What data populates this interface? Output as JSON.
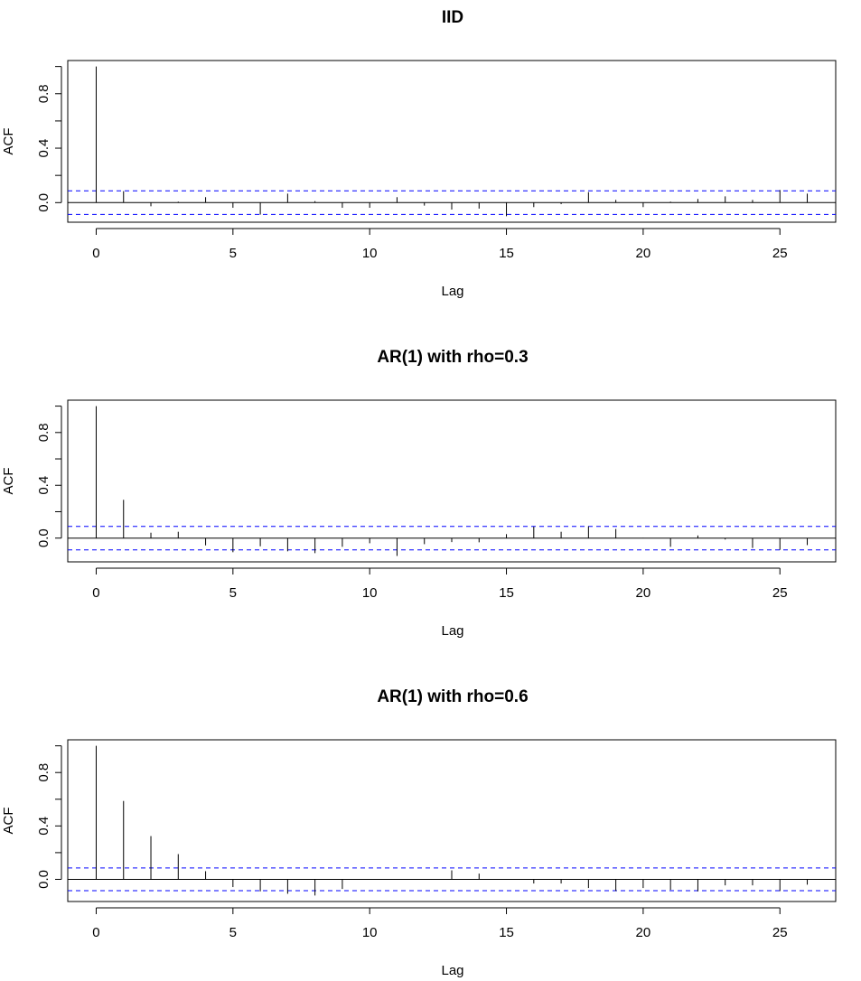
{
  "chart_data": [
    {
      "type": "bar",
      "title": "IID",
      "xlabel": "Lag",
      "ylabel": "ACF",
      "xlim": [
        -1.04,
        27.04
      ],
      "ylim": [
        -0.144,
        1.044
      ],
      "xticks": [
        0,
        5,
        10,
        15,
        20,
        25
      ],
      "yticks": [
        0,
        0.2,
        0.4,
        0.6,
        0.8,
        1.0
      ],
      "ytick_labels": [
        "0.0",
        "",
        "0.4",
        "",
        "0.8",
        ""
      ],
      "conf_bound": 0.087,
      "conf_color": "#0000ff",
      "lags": [
        0,
        1,
        2,
        3,
        4,
        5,
        6,
        7,
        8,
        9,
        10,
        11,
        12,
        13,
        14,
        15,
        16,
        17,
        18,
        19,
        20,
        21,
        22,
        23,
        24,
        25,
        26
      ],
      "values": [
        1.0,
        0.084,
        -0.027,
        0.007,
        0.04,
        -0.038,
        -0.088,
        0.066,
        0.011,
        -0.038,
        -0.038,
        0.04,
        -0.022,
        -0.051,
        -0.044,
        -0.1,
        -0.033,
        -0.011,
        0.077,
        0.02,
        -0.033,
        0.007,
        0.027,
        0.046,
        0.02,
        0.093,
        0.066
      ]
    },
    {
      "type": "bar",
      "title": "AR(1) with rho=0.3",
      "xlabel": "Lag",
      "ylabel": "ACF",
      "xlim": [
        -1.04,
        27.04
      ],
      "ylim": [
        -0.18,
        1.045
      ],
      "xticks": [
        0,
        5,
        10,
        15,
        20,
        25
      ],
      "yticks": [
        0,
        0.2,
        0.4,
        0.6,
        0.8,
        1.0
      ],
      "ytick_labels": [
        "0.0",
        "",
        "0.4",
        "",
        "0.8",
        ""
      ],
      "conf_bound": 0.089,
      "conf_color": "#0000ff",
      "lags": [
        0,
        1,
        2,
        3,
        4,
        5,
        6,
        7,
        8,
        9,
        10,
        11,
        12,
        13,
        14,
        15,
        16,
        17,
        18,
        19,
        20,
        21,
        22,
        23,
        24,
        25,
        26
      ],
      "values": [
        1.0,
        0.29,
        0.041,
        0.048,
        -0.055,
        -0.107,
        -0.062,
        -0.1,
        -0.114,
        -0.066,
        -0.039,
        -0.135,
        -0.046,
        -0.03,
        -0.032,
        0.03,
        0.087,
        0.048,
        0.089,
        0.069,
        0.002,
        -0.066,
        0.02,
        -0.011,
        -0.075,
        -0.089,
        -0.053
      ]
    },
    {
      "type": "bar",
      "title": "AR(1) with rho=0.6",
      "xlabel": "Lag",
      "ylabel": "ACF",
      "xlim": [
        -1.04,
        27.04
      ],
      "ylim": [
        -0.166,
        1.045
      ],
      "xticks": [
        0,
        5,
        10,
        15,
        20,
        25
      ],
      "yticks": [
        0,
        0.2,
        0.4,
        0.6,
        0.8,
        1.0
      ],
      "ytick_labels": [
        "0.0",
        "",
        "0.4",
        "",
        "0.8",
        ""
      ],
      "conf_bound": 0.085,
      "conf_color": "#0000ff",
      "lags": [
        0,
        1,
        2,
        3,
        4,
        5,
        6,
        7,
        8,
        9,
        10,
        11,
        12,
        13,
        14,
        15,
        16,
        17,
        18,
        19,
        20,
        21,
        22,
        23,
        24,
        25,
        26
      ],
      "values": [
        1.0,
        0.587,
        0.324,
        0.189,
        0.061,
        -0.058,
        -0.09,
        -0.108,
        -0.121,
        -0.072,
        0.002,
        -0.002,
        0.002,
        0.067,
        0.043,
        0.002,
        -0.031,
        -0.031,
        -0.065,
        -0.088,
        -0.065,
        -0.079,
        -0.09,
        -0.045,
        -0.045,
        -0.088,
        -0.04
      ]
    }
  ]
}
